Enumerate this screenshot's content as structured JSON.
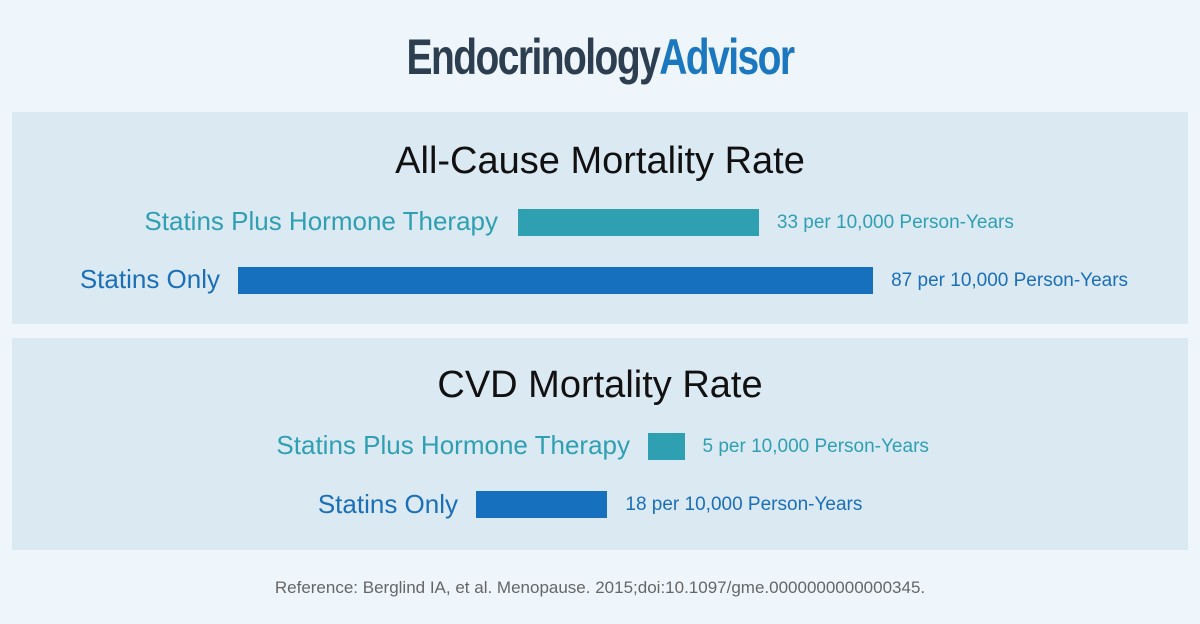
{
  "brand": {
    "part1": "Endocrinology",
    "part2": "Advisor"
  },
  "chart_data": [
    {
      "type": "bar",
      "orientation": "horizontal",
      "title": "All-Cause Mortality Rate",
      "categories": [
        "Statins Plus Hormone Therapy",
        "Statins Only"
      ],
      "values": [
        33,
        87
      ],
      "unit": "per 10,000 Person-Years",
      "value_labels": [
        "33 per 10,000 Person-Years",
        "87 per 10,000 Person-Years"
      ],
      "colors": [
        "#2f9fb2",
        "#1670bd"
      ],
      "grid": false
    },
    {
      "type": "bar",
      "orientation": "horizontal",
      "title": "CVD Mortality Rate",
      "categories": [
        "Statins Plus Hormone Therapy",
        "Statins Only"
      ],
      "values": [
        5,
        18
      ],
      "unit": "per 10,000 Person-Years",
      "value_labels": [
        "5 per 10,000 Person-Years",
        "18 per 10,000 Person-Years"
      ],
      "colors": [
        "#2f9fb2",
        "#1670bd"
      ],
      "grid": false
    }
  ],
  "reference": "Reference:  Berglind IA, et al. Menopause. 2015;doi:10.1097/gme.0000000000000345."
}
